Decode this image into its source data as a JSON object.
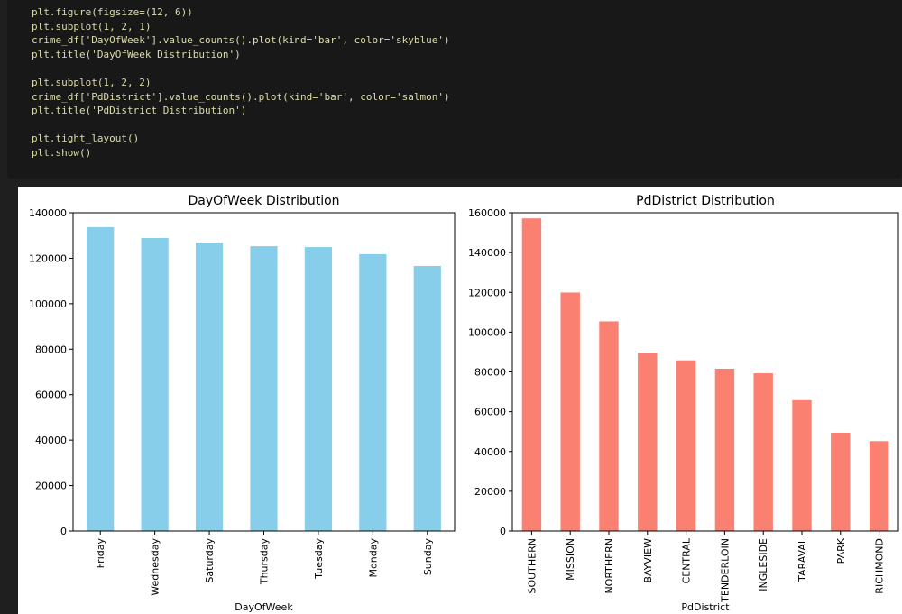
{
  "code": {
    "blocks": [
      [
        "plt.figure(figsize=(12, 6))",
        "plt.subplot(1, 2, 1)",
        "crime_df['DayOfWeek'].value_counts().plot(kind='bar', color='skyblue')",
        "plt.title('DayOfWeek Distribution')"
      ],
      [
        "plt.subplot(1, 2, 2)",
        "crime_df['PdDistrict'].value_counts().plot(kind='bar', color='salmon')",
        "plt.title('PdDistrict Distribution')"
      ],
      [
        "plt.tight_layout()",
        "plt.show()"
      ]
    ]
  },
  "chart_data": [
    {
      "type": "bar",
      "title": "DayOfWeek Distribution",
      "x_label": "DayOfWeek",
      "categories": [
        "Friday",
        "Wednesday",
        "Saturday",
        "Thursday",
        "Tuesday",
        "Monday",
        "Sunday"
      ],
      "values": [
        133700,
        128900,
        126900,
        125300,
        124900,
        121800,
        116600
      ],
      "color": "#87ceeb",
      "ylim": [
        0,
        140000
      ],
      "yticks": [
        0,
        20000,
        40000,
        60000,
        80000,
        100000,
        120000,
        140000
      ]
    },
    {
      "type": "bar",
      "title": "PdDistrict Distribution",
      "x_label": "PdDistrict",
      "categories": [
        "SOUTHERN",
        "MISSION",
        "NORTHERN",
        "BAYVIEW",
        "CENTRAL",
        "TENDERLOIN",
        "INGLESIDE",
        "TARAVAL",
        "PARK",
        "RICHMOND"
      ],
      "values": [
        157200,
        119900,
        105400,
        89600,
        85800,
        81600,
        79300,
        65800,
        49400,
        45200
      ],
      "color": "#fa8072",
      "ylim": [
        0,
        160000
      ],
      "yticks": [
        0,
        20000,
        40000,
        60000,
        80000,
        100000,
        120000,
        140000,
        160000
      ]
    }
  ]
}
